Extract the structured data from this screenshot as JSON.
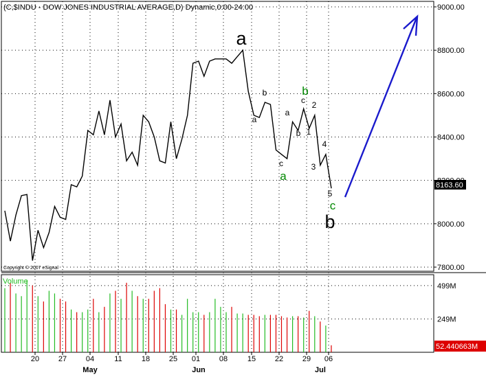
{
  "chart_data": [
    {
      "type": "line",
      "title": "(C,$INDU - DOW JONES INDUSTRIAL AVERAGE,D) Dynamic,0:00-24:00",
      "ylim": [
        7800,
        9000
      ],
      "ytick_labels": [
        "7800.00",
        "8000.00",
        "8200.00",
        "8400.00",
        "8600.00",
        "8800.00",
        "9000.00"
      ],
      "yticks": [
        7800,
        8000,
        8200,
        8400,
        8600,
        8800,
        9000
      ],
      "xtick_labels": [
        "20",
        "27",
        "04",
        "11",
        "18",
        "25",
        "01",
        "08",
        "15",
        "22",
        "29",
        "06"
      ],
      "month_labels": [
        "May",
        "Jun",
        "Jul"
      ],
      "last_price_label": "8163.60",
      "grid": true,
      "copyright": "Copyright © 2007 eSignal",
      "closes": [
        8060,
        7920,
        8040,
        8130,
        8135,
        7830,
        7970,
        7890,
        7960,
        8080,
        8030,
        8020,
        8180,
        8170,
        8220,
        8430,
        8410,
        8520,
        8410,
        8570,
        8400,
        8460,
        8290,
        8330,
        8270,
        8500,
        8470,
        8400,
        8290,
        8280,
        8470,
        8300,
        8390,
        8500,
        8740,
        8750,
        8680,
        8750,
        8760,
        8760,
        8760,
        8740,
        8770,
        8800,
        8610,
        8500,
        8490,
        8560,
        8550,
        8340,
        8320,
        8300,
        8470,
        8430,
        8530,
        8440,
        8500,
        8270,
        8320,
        8163.6
      ],
      "wave_labels": [
        {
          "text": "a",
          "color": "#000000",
          "size": "large"
        },
        {
          "text": "b",
          "color": "#000000",
          "size": "large"
        },
        {
          "text": "a",
          "color": "#008800",
          "size": "medium"
        },
        {
          "text": "b",
          "color": "#008800",
          "size": "medium"
        },
        {
          "text": "c",
          "color": "#008800",
          "size": "medium"
        },
        {
          "text": "a",
          "color": "#000000",
          "size": "small"
        },
        {
          "text": "b",
          "color": "#000000",
          "size": "small"
        },
        {
          "text": "c",
          "color": "#000000",
          "size": "small"
        },
        {
          "text": "a",
          "color": "#000000",
          "size": "small"
        },
        {
          "text": "b",
          "color": "#000000",
          "size": "small"
        },
        {
          "text": "c",
          "color": "#000000",
          "size": "small"
        },
        {
          "text": "1",
          "color": "#000000",
          "size": "small"
        },
        {
          "text": "2",
          "color": "#000000",
          "size": "small"
        },
        {
          "text": "3",
          "color": "#000000",
          "size": "small"
        },
        {
          "text": "4",
          "color": "#000000",
          "size": "small"
        },
        {
          "text": "5",
          "color": "#000000",
          "size": "small"
        }
      ],
      "projection_color": "#1a1acc",
      "line_color": "#000000"
    },
    {
      "type": "bar",
      "title": "Volume",
      "ytick_labels": [
        "249M",
        "499M"
      ],
      "yticks": [
        249,
        499
      ],
      "ylim": [
        0,
        560
      ],
      "unit": "M",
      "last_volume_label": "52.440663M",
      "volumes": [
        480,
        520,
        440,
        420,
        540,
        500,
        420,
        380,
        460,
        440,
        400,
        380,
        320,
        300,
        300,
        320,
        400,
        300,
        340,
        440,
        460,
        400,
        520,
        460,
        420,
        400,
        400,
        460,
        480,
        360,
        320,
        320,
        280,
        400,
        300,
        300,
        280,
        300,
        400,
        340,
        300,
        340,
        290,
        290,
        280,
        280,
        270,
        280,
        280,
        280,
        270,
        260,
        270,
        270,
        260,
        310,
        270,
        230,
        200,
        52.44
      ],
      "up_color": "#22bb22",
      "down_color": "#dd0000"
    }
  ]
}
